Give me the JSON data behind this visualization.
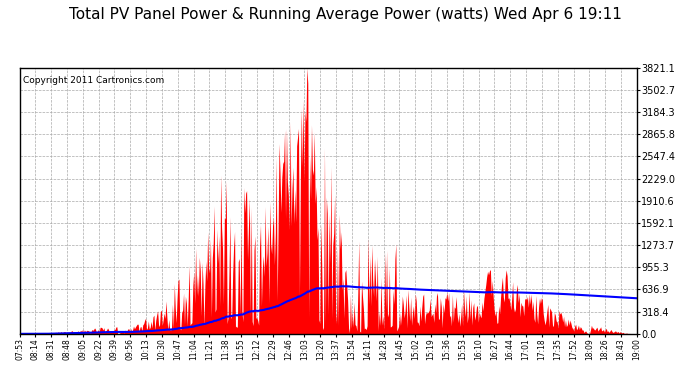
{
  "title": "Total PV Panel Power & Running Average Power (watts) Wed Apr 6 19:11",
  "copyright": "Copyright 2011 Cartronics.com",
  "y_max": 3821.1,
  "y_ticks": [
    0.0,
    318.4,
    636.9,
    955.3,
    1273.7,
    1592.1,
    1910.6,
    2229.0,
    2547.4,
    2865.8,
    3184.3,
    3502.7,
    3821.1
  ],
  "y_tick_labels": [
    "0.0",
    "318.4",
    "636.9",
    "955.3",
    "1273.7",
    "1592.1",
    "1910.6",
    "2229.0",
    "2547.4",
    "2865.8",
    "3184.3",
    "3502.7",
    "3821.1"
  ],
  "x_labels": [
    "07:53",
    "08:14",
    "08:31",
    "08:48",
    "09:05",
    "09:22",
    "09:39",
    "09:56",
    "10:13",
    "10:30",
    "10:47",
    "11:04",
    "11:21",
    "11:38",
    "11:55",
    "12:12",
    "12:29",
    "12:46",
    "13:03",
    "13:20",
    "13:37",
    "13:54",
    "14:11",
    "14:28",
    "14:45",
    "15:02",
    "15:19",
    "15:36",
    "15:53",
    "16:10",
    "16:27",
    "16:44",
    "17:01",
    "17:18",
    "17:35",
    "17:52",
    "18:09",
    "18:26",
    "18:43",
    "19:00"
  ],
  "bg_color": "#ffffff",
  "plot_bg_color": "#ffffff",
  "title_color": "#000000",
  "grid_color": "#aaaaaa",
  "bar_color": "#ff0000",
  "line_color": "#0000ff",
  "title_fontsize": 11,
  "copyright_fontsize": 6.5
}
